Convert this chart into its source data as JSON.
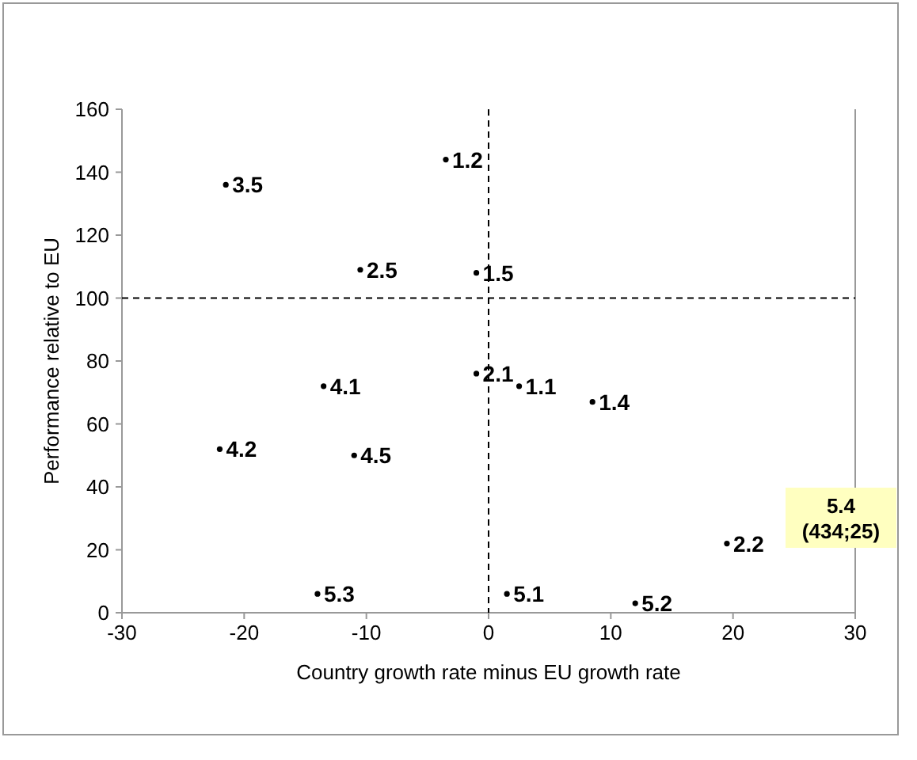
{
  "chart_data": {
    "type": "scatter",
    "xlabel": "Country growth rate minus EU growth rate",
    "ylabel": "Performance relative to EU",
    "xlim": [
      -30,
      30
    ],
    "ylim": [
      0,
      160
    ],
    "xticks": [
      -30,
      -20,
      -10,
      0,
      10,
      20,
      30
    ],
    "yticks": [
      0,
      20,
      40,
      60,
      80,
      100,
      120,
      140,
      160
    ],
    "grid": false,
    "legend": false,
    "marker": "circle",
    "series": [
      {
        "name": "3.5",
        "color": "#000000",
        "x": [
          -21.5
        ],
        "values": [
          136
        ]
      },
      {
        "name": "2.5",
        "color": "#000000",
        "x": [
          -10.5
        ],
        "values": [
          109
        ]
      },
      {
        "name": "4.1",
        "color": "#000000",
        "x": [
          -13.5
        ],
        "values": [
          72
        ]
      },
      {
        "name": "4.2",
        "color": "#000000",
        "x": [
          -22
        ],
        "values": [
          52
        ]
      },
      {
        "name": "4.5",
        "color": "#000000",
        "x": [
          -11
        ],
        "values": [
          50
        ]
      },
      {
        "name": "5.3",
        "color": "#000000",
        "x": [
          -14
        ],
        "values": [
          6
        ]
      },
      {
        "name": "1.2",
        "color": "#000000",
        "x": [
          -3.5
        ],
        "values": [
          144
        ]
      },
      {
        "name": "1.5",
        "color": "#000000",
        "x": [
          -1
        ],
        "values": [
          108
        ]
      },
      {
        "name": "2.1",
        "color": "#000000",
        "x": [
          -1
        ],
        "values": [
          76
        ]
      },
      {
        "name": "1.1",
        "color": "#000000",
        "x": [
          2.5
        ],
        "values": [
          72
        ]
      },
      {
        "name": "1.4",
        "color": "#000000",
        "x": [
          8.5
        ],
        "values": [
          67
        ]
      },
      {
        "name": "2.2",
        "color": "#000000",
        "x": [
          19.5
        ],
        "values": [
          22
        ]
      },
      {
        "name": "5.1",
        "color": "#000000",
        "x": [
          1.5
        ],
        "values": [
          6
        ]
      },
      {
        "name": "5.2",
        "color": "#000000",
        "x": [
          12
        ],
        "values": [
          3
        ]
      }
    ],
    "ref_lines": [
      {
        "axis": "y",
        "value": 100,
        "line_style": "dashed",
        "color": "#000000"
      },
      {
        "axis": "x",
        "value": 0,
        "line_style": "dashed",
        "color": "#000000"
      }
    ],
    "annotations": [
      "5.4 (434;25)"
    ]
  }
}
